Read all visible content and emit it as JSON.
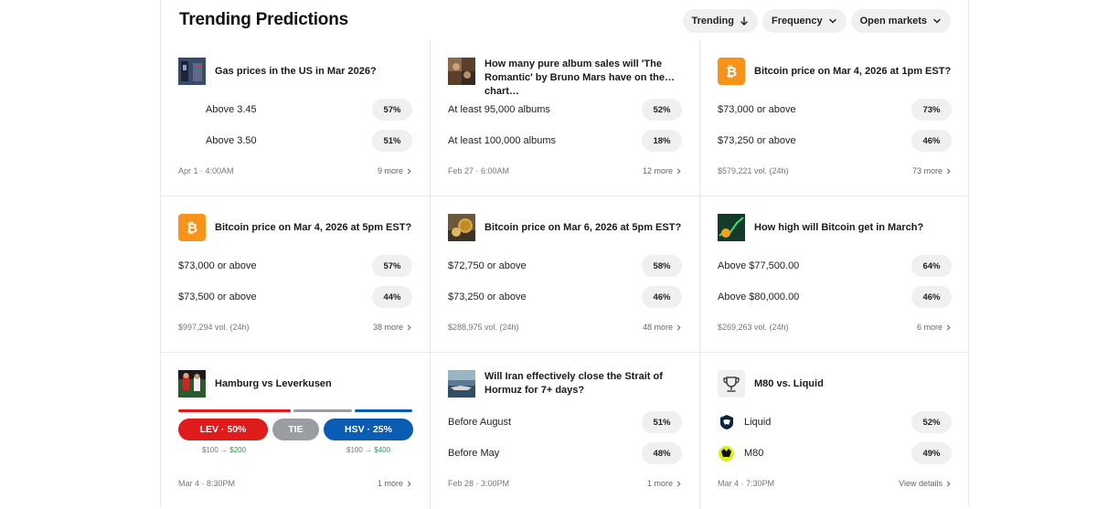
{
  "header": {
    "title": "Trending Predictions",
    "filters": [
      {
        "label": "Trending",
        "icon": "arrow-down-icon"
      },
      {
        "label": "Frequency",
        "icon": "chevron-down-icon"
      },
      {
        "label": "Open markets",
        "icon": "chevron-down-icon"
      }
    ]
  },
  "colors": {
    "bitcoin": "#f7931a",
    "lev": "#e01b1b",
    "tie": "#9a9ea3",
    "hsv": "#0b5cb3",
    "win": "#2a9a4f"
  },
  "cards": [
    {
      "title": "Gas prices in the US in Mar 2026?",
      "options": [
        {
          "label": "Above 3.45",
          "pct": "57%"
        },
        {
          "label": "Above 3.50",
          "pct": "51%"
        }
      ],
      "meta": "Apr 1 · 4:00AM",
      "more": "9 more"
    },
    {
      "title": "How many pure album sales will 'The Romantic' by Bruno Mars have on the chart…",
      "options": [
        {
          "label": "At least 95,000 albums",
          "pct": "52%"
        },
        {
          "label": "At least 100,000 albums",
          "pct": "18%"
        }
      ],
      "meta": "Feb 27 · 6:00AM",
      "more": "12 more"
    },
    {
      "title": "Bitcoin price on Mar 4, 2026 at 1pm EST?",
      "options": [
        {
          "label": "$73,000 or above",
          "pct": "73%"
        },
        {
          "label": "$73,250 or above",
          "pct": "46%"
        }
      ],
      "meta": "$579,221 vol. (24h)",
      "more": "73 more"
    },
    {
      "title": "Bitcoin price on Mar 4, 2026 at 5pm EST?",
      "options": [
        {
          "label": "$73,000 or above",
          "pct": "57%"
        },
        {
          "label": "$73,500 or above",
          "pct": "44%"
        }
      ],
      "meta": "$997,294 vol. (24h)",
      "more": "38 more"
    },
    {
      "title": "Bitcoin price on Mar 6, 2026 at 5pm EST?",
      "options": [
        {
          "label": "$72,750 or above",
          "pct": "58%"
        },
        {
          "label": "$73,250 or above",
          "pct": "46%"
        }
      ],
      "meta": "$288,975 vol. (24h)",
      "more": "48 more"
    },
    {
      "title": "How high will Bitcoin get in March?",
      "options": [
        {
          "label": "Above $77,500.00",
          "pct": "64%"
        },
        {
          "label": "Above $80,000.00",
          "pct": "46%"
        }
      ],
      "meta": "$269,263 vol. (24h)",
      "more": "6 more"
    },
    {
      "title": "Hamburg vs Leverkusen",
      "buttons": [
        {
          "label": "LEV · 50%"
        },
        {
          "label": "TIE"
        },
        {
          "label": "HSV · 25%"
        }
      ],
      "payouts": [
        {
          "stake": "$100 →",
          "win": "$200"
        },
        {
          "stake": "$100 →",
          "win": "$400"
        }
      ],
      "meta": "Mar 4 · 8:30PM",
      "more": "1 more"
    },
    {
      "title": "Will Iran effectively close the Strait of Hormuz for 7+ days?",
      "options": [
        {
          "label": "Before August",
          "pct": "51%"
        },
        {
          "label": "Before May",
          "pct": "48%"
        }
      ],
      "meta": "Feb 28 · 3:00PM",
      "more": "1 more"
    },
    {
      "title": "M80 vs. Liquid",
      "options": [
        {
          "label": "Liquid",
          "pct": "52%"
        },
        {
          "label": "M80",
          "pct": "49%"
        }
      ],
      "meta": "Mar 4 · 7:30PM",
      "more": "View details"
    }
  ]
}
